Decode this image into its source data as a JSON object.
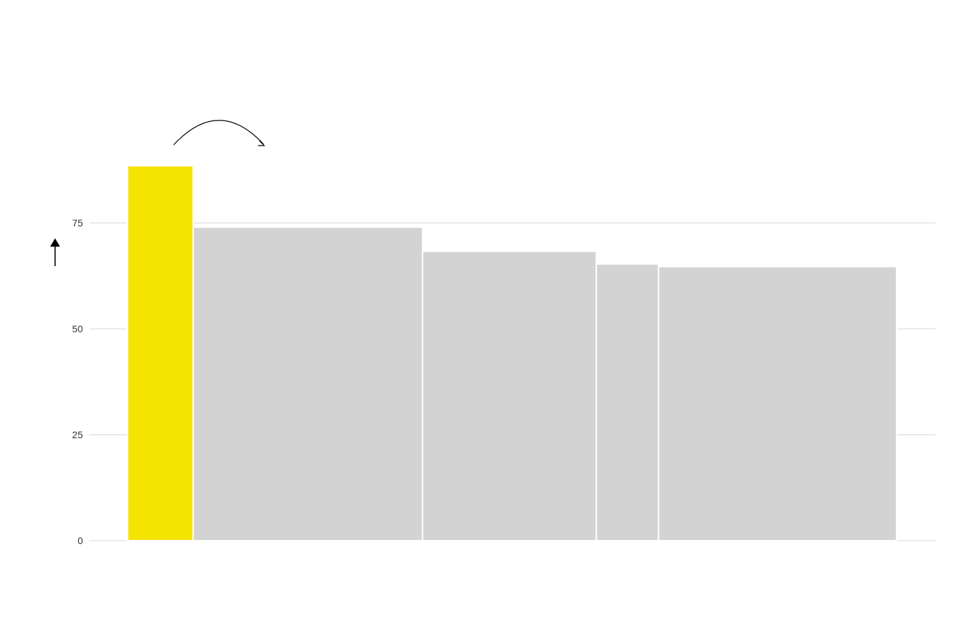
{
  "chart_data": {
    "type": "bar",
    "variable_width": true,
    "title": "",
    "xlabel": "",
    "ylabel": "",
    "ylim": [
      0,
      100
    ],
    "y_ticks": [
      0,
      25,
      50,
      75
    ],
    "grid": true,
    "bars": [
      {
        "value": 88.5,
        "width": 1.0,
        "highlight": true
      },
      {
        "value": 74.0,
        "width": 3.5,
        "highlight": false
      },
      {
        "value": 68.3,
        "width": 2.65,
        "highlight": false
      },
      {
        "value": 65.3,
        "width": 0.95,
        "highlight": false
      },
      {
        "value": 64.7,
        "width": 3.63,
        "highlight": false
      }
    ],
    "colors": {
      "highlight": "#f5e300",
      "default": "#d3d3d3",
      "grid": "#e3e3e3",
      "bar_gap": "#ffffff"
    },
    "annotations": {
      "y_axis_arrow": "up",
      "curved_arrow": "right"
    }
  }
}
